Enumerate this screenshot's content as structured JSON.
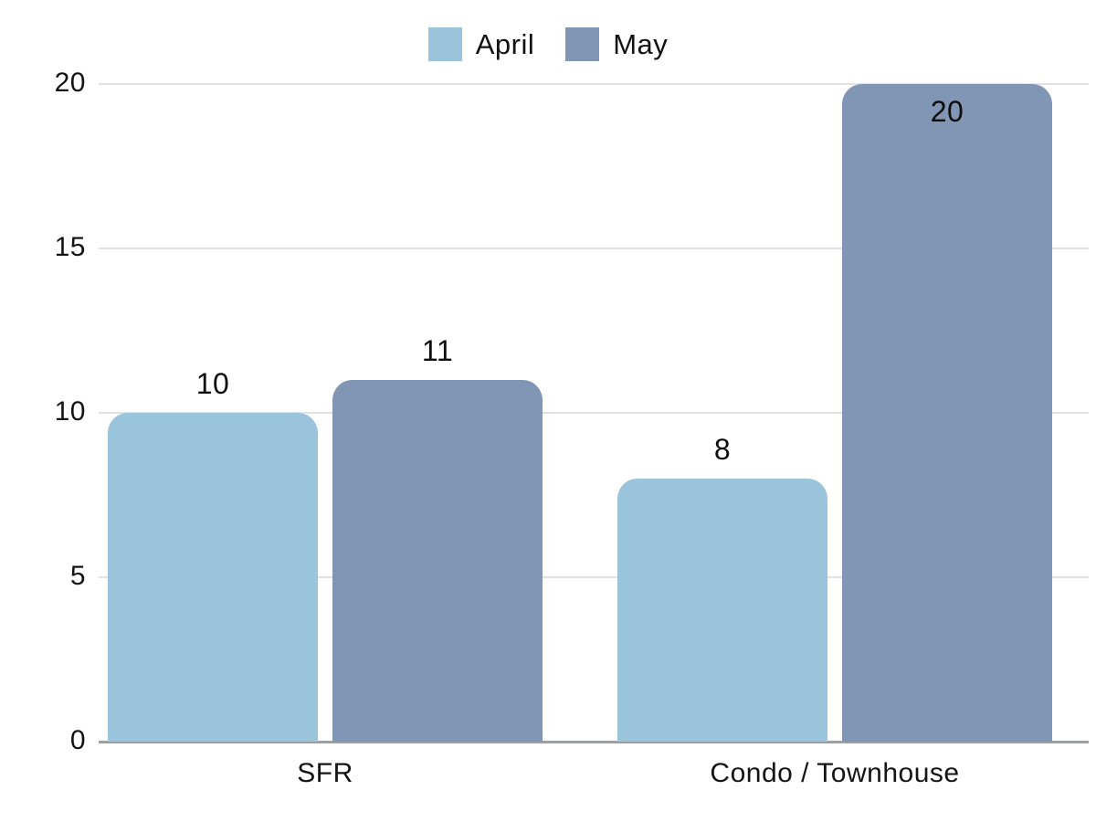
{
  "chart_data": {
    "type": "bar",
    "categories": [
      "SFR",
      "Condo / Townhouse"
    ],
    "series": [
      {
        "name": "April",
        "color": "#9AC4DB",
        "values": [
          10,
          8
        ]
      },
      {
        "name": "May",
        "color": "#8096B4",
        "values": [
          11,
          20
        ]
      }
    ],
    "yticks": [
      0,
      5,
      10,
      15,
      20
    ],
    "ylim": [
      0,
      20
    ],
    "grid": true,
    "legend_position": "top-center",
    "bar_labels": true,
    "title": "",
    "xlabel": "",
    "ylabel": ""
  },
  "colors": {
    "gridline": "#e2e2e2",
    "baseline": "#9aa0a6",
    "text": "#141414"
  }
}
